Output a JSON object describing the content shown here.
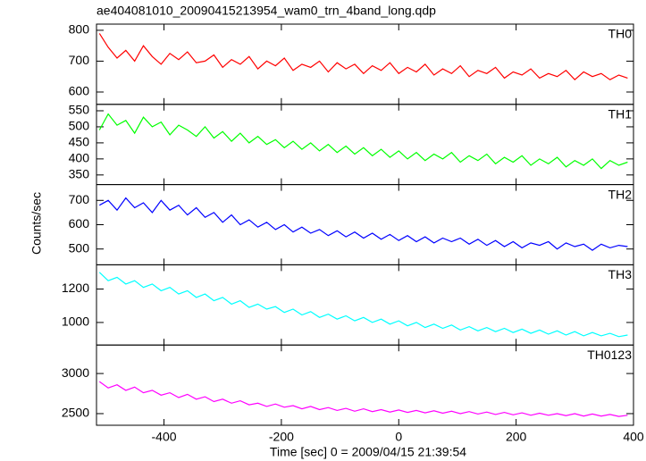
{
  "chart_data": [
    {
      "type": "line",
      "title": "ae404081010_20090415213954_wam0_trn_4band_long.qdp",
      "name": "TH0",
      "color": "#ff0000",
      "x": [
        -510,
        -495,
        -480,
        -465,
        -450,
        -435,
        -420,
        -405,
        -390,
        -375,
        -360,
        -345,
        -330,
        -315,
        -300,
        -285,
        -270,
        -255,
        -240,
        -225,
        -210,
        -195,
        -180,
        -165,
        -150,
        -135,
        -120,
        -105,
        -90,
        -75,
        -60,
        -45,
        -30,
        -15,
        0,
        15,
        30,
        45,
        60,
        75,
        90,
        105,
        120,
        135,
        150,
        165,
        180,
        195,
        210,
        225,
        240,
        255,
        270,
        285,
        300,
        315,
        330,
        345,
        360,
        375,
        390
      ],
      "values": [
        790,
        745,
        710,
        735,
        700,
        750,
        715,
        690,
        725,
        705,
        730,
        695,
        700,
        720,
        680,
        705,
        690,
        715,
        675,
        700,
        685,
        710,
        670,
        690,
        680,
        700,
        665,
        695,
        675,
        690,
        660,
        685,
        670,
        695,
        660,
        680,
        665,
        690,
        655,
        675,
        660,
        685,
        650,
        670,
        660,
        680,
        645,
        665,
        655,
        675,
        645,
        660,
        650,
        670,
        640,
        665,
        650,
        660,
        640,
        655,
        645
      ],
      "xlim": [
        -515,
        400
      ],
      "ylim": [
        560,
        820
      ],
      "yticks": [
        600,
        700,
        800
      ]
    },
    {
      "type": "line",
      "name": "TH1",
      "color": "#00ff00",
      "x": [
        -510,
        -495,
        -480,
        -465,
        -450,
        -435,
        -420,
        -405,
        -390,
        -375,
        -360,
        -345,
        -330,
        -315,
        -300,
        -285,
        -270,
        -255,
        -240,
        -225,
        -210,
        -195,
        -180,
        -165,
        -150,
        -135,
        -120,
        -105,
        -90,
        -75,
        -60,
        -45,
        -30,
        -15,
        0,
        15,
        30,
        45,
        60,
        75,
        90,
        105,
        120,
        135,
        150,
        165,
        180,
        195,
        210,
        225,
        240,
        255,
        270,
        285,
        300,
        315,
        330,
        345,
        360,
        375,
        390
      ],
      "values": [
        490,
        540,
        505,
        520,
        480,
        530,
        500,
        515,
        475,
        505,
        490,
        470,
        500,
        465,
        485,
        455,
        480,
        450,
        470,
        445,
        460,
        435,
        455,
        430,
        450,
        425,
        445,
        420,
        440,
        415,
        435,
        410,
        430,
        405,
        425,
        400,
        420,
        395,
        415,
        400,
        420,
        390,
        410,
        395,
        415,
        385,
        405,
        390,
        410,
        380,
        400,
        385,
        405,
        375,
        395,
        380,
        400,
        370,
        395,
        380,
        390
      ],
      "xlim": [
        -515,
        400
      ],
      "ylim": [
        320,
        570
      ],
      "yticks": [
        350,
        400,
        450,
        500,
        550
      ]
    },
    {
      "type": "line",
      "name": "TH2",
      "color": "#0000ff",
      "ylabel": "Counts/sec",
      "x": [
        -510,
        -495,
        -480,
        -465,
        -450,
        -435,
        -420,
        -405,
        -390,
        -375,
        -360,
        -345,
        -330,
        -315,
        -300,
        -285,
        -270,
        -255,
        -240,
        -225,
        -210,
        -195,
        -180,
        -165,
        -150,
        -135,
        -120,
        -105,
        -90,
        -75,
        -60,
        -45,
        -30,
        -15,
        0,
        15,
        30,
        45,
        60,
        75,
        90,
        105,
        120,
        135,
        150,
        165,
        180,
        195,
        210,
        225,
        240,
        255,
        270,
        285,
        300,
        315,
        330,
        345,
        360,
        375,
        390
      ],
      "values": [
        680,
        700,
        660,
        710,
        670,
        690,
        650,
        700,
        660,
        680,
        640,
        670,
        630,
        650,
        610,
        640,
        600,
        620,
        590,
        610,
        580,
        600,
        570,
        590,
        565,
        580,
        555,
        575,
        550,
        570,
        545,
        565,
        540,
        560,
        535,
        555,
        530,
        550,
        525,
        545,
        530,
        545,
        520,
        540,
        515,
        535,
        510,
        530,
        505,
        525,
        515,
        530,
        500,
        525,
        510,
        520,
        495,
        520,
        505,
        515,
        510
      ],
      "xlim": [
        -515,
        400
      ],
      "ylim": [
        435,
        765
      ],
      "yticks": [
        500,
        600,
        700
      ]
    },
    {
      "type": "line",
      "name": "TH3",
      "color": "#00ffff",
      "x": [
        -510,
        -495,
        -480,
        -465,
        -450,
        -435,
        -420,
        -405,
        -390,
        -375,
        -360,
        -345,
        -330,
        -315,
        -300,
        -285,
        -270,
        -255,
        -240,
        -225,
        -210,
        -195,
        -180,
        -165,
        -150,
        -135,
        -120,
        -105,
        -90,
        -75,
        -60,
        -45,
        -30,
        -15,
        0,
        15,
        30,
        45,
        60,
        75,
        90,
        105,
        120,
        135,
        150,
        165,
        180,
        195,
        210,
        225,
        240,
        255,
        270,
        285,
        300,
        315,
        330,
        345,
        360,
        375,
        390
      ],
      "values": [
        1300,
        1250,
        1270,
        1230,
        1250,
        1210,
        1230,
        1190,
        1210,
        1170,
        1190,
        1150,
        1170,
        1130,
        1150,
        1110,
        1130,
        1090,
        1110,
        1080,
        1095,
        1060,
        1080,
        1045,
        1065,
        1030,
        1050,
        1020,
        1040,
        1010,
        1030,
        1000,
        1020,
        990,
        1010,
        980,
        1000,
        970,
        990,
        965,
        985,
        955,
        975,
        950,
        970,
        945,
        965,
        940,
        960,
        935,
        955,
        930,
        950,
        925,
        945,
        920,
        940,
        920,
        935,
        915,
        925
      ],
      "xlim": [
        -515,
        400
      ],
      "ylim": [
        865,
        1345
      ],
      "yticks": [
        1000,
        1200
      ]
    },
    {
      "type": "line",
      "name": "TH0123",
      "color": "#ff00ff",
      "xlabel": "Time [sec] 0 = 2009/04/15 21:39:54",
      "x": [
        -510,
        -495,
        -480,
        -465,
        -450,
        -435,
        -420,
        -405,
        -390,
        -375,
        -360,
        -345,
        -330,
        -315,
        -300,
        -285,
        -270,
        -255,
        -240,
        -225,
        -210,
        -195,
        -180,
        -165,
        -150,
        -135,
        -120,
        -105,
        -90,
        -75,
        -60,
        -45,
        -30,
        -15,
        0,
        15,
        30,
        45,
        60,
        75,
        90,
        105,
        120,
        135,
        150,
        165,
        180,
        195,
        210,
        225,
        240,
        255,
        270,
        285,
        300,
        315,
        330,
        345,
        360,
        375,
        390
      ],
      "values": [
        2900,
        2820,
        2860,
        2790,
        2830,
        2760,
        2790,
        2730,
        2760,
        2700,
        2740,
        2680,
        2710,
        2650,
        2680,
        2630,
        2660,
        2610,
        2630,
        2590,
        2620,
        2580,
        2600,
        2560,
        2590,
        2550,
        2575,
        2540,
        2565,
        2530,
        2560,
        2525,
        2550,
        2520,
        2545,
        2515,
        2540,
        2510,
        2535,
        2505,
        2530,
        2500,
        2525,
        2495,
        2520,
        2490,
        2515,
        2485,
        2510,
        2480,
        2505,
        2480,
        2500,
        2475,
        2500,
        2470,
        2495,
        2470,
        2490,
        2465,
        2480
      ],
      "xlim": [
        -515,
        400
      ],
      "ylim": [
        2355,
        3355
      ],
      "yticks": [
        2500,
        3000
      ],
      "xticks": [
        -400,
        -200,
        0,
        200,
        400
      ]
    }
  ]
}
